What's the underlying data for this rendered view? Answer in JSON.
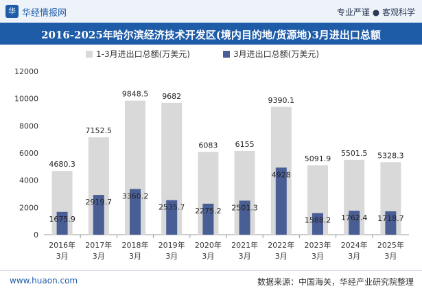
{
  "header": {
    "logo_glyph": "华",
    "brand": "华经情报网",
    "slogan": "专业严谨 ● 客观科学",
    "title": "2016-2025年哈尔滨经济技术开发区(境内目的地/货源地)3月进出口总额"
  },
  "footer": {
    "website": "www.huaon.com",
    "source": "数据来源：中国海关，华经产业研究院整理"
  },
  "chart_data": {
    "type": "bar",
    "categories": [
      [
        "2016年",
        "3月"
      ],
      [
        "2017年",
        "3月"
      ],
      [
        "2018年",
        "3月"
      ],
      [
        "2019年",
        "3月"
      ],
      [
        "2020年",
        "3月"
      ],
      [
        "2021年",
        "3月"
      ],
      [
        "2022年",
        "3月"
      ],
      [
        "2023年",
        "3月"
      ],
      [
        "2024年",
        "3月"
      ],
      [
        "2025年",
        "3月"
      ]
    ],
    "series": [
      {
        "name": "1-3月进出口总额(万美元)",
        "color": "#d9d9d9",
        "values": [
          4680.3,
          7152.5,
          9848.5,
          9682,
          6083,
          6155,
          9390.1,
          5091.9,
          5501.5,
          5328.3
        ]
      },
      {
        "name": "3月进出口总额(万美元)",
        "color": "#4a5e96",
        "values": [
          1675.9,
          2919.7,
          3360.2,
          2535.7,
          2275.2,
          2501.3,
          4928,
          1588.2,
          1762.4,
          1718.7
        ]
      }
    ],
    "ylim": [
      0,
      12000
    ],
    "yticks": [
      0,
      2000,
      4000,
      6000,
      8000,
      10000,
      12000
    ],
    "legend": "top-center",
    "grid": false
  }
}
